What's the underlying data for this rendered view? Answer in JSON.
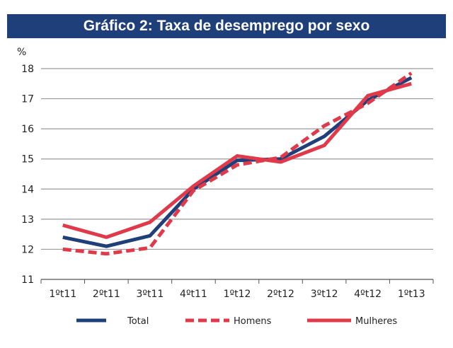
{
  "chart_data": {
    "type": "line",
    "title": "Gráfico 2: Taxa de desemprego por sexo",
    "ylabel": "%",
    "xlabel": "",
    "categories": [
      "1ºt11",
      "2ºt11",
      "3ºt11",
      "4ºt11",
      "1ºt12",
      "2ºt12",
      "3ºt12",
      "4ºt12",
      "1ºt13"
    ],
    "ylim": [
      11,
      18
    ],
    "yticks": [
      "11",
      "12",
      "13",
      "14",
      "15",
      "16",
      "17",
      "18"
    ],
    "grid": true,
    "legend_position": "bottom",
    "series": [
      {
        "name": "Total",
        "color": "#1f3f7a",
        "style": "solid",
        "values": [
          12.4,
          12.1,
          12.45,
          14.0,
          14.95,
          15.0,
          15.75,
          16.95,
          17.7
        ]
      },
      {
        "name": "Homens",
        "color": "#e03a4a",
        "style": "dashed",
        "values": [
          12.0,
          11.85,
          12.05,
          13.95,
          14.8,
          15.05,
          16.1,
          16.85,
          17.85
        ]
      },
      {
        "name": "Mulheres",
        "color": "#e03a4a",
        "style": "solid",
        "values": [
          12.8,
          12.4,
          12.9,
          14.1,
          15.1,
          14.9,
          15.45,
          17.1,
          17.5
        ]
      }
    ]
  }
}
